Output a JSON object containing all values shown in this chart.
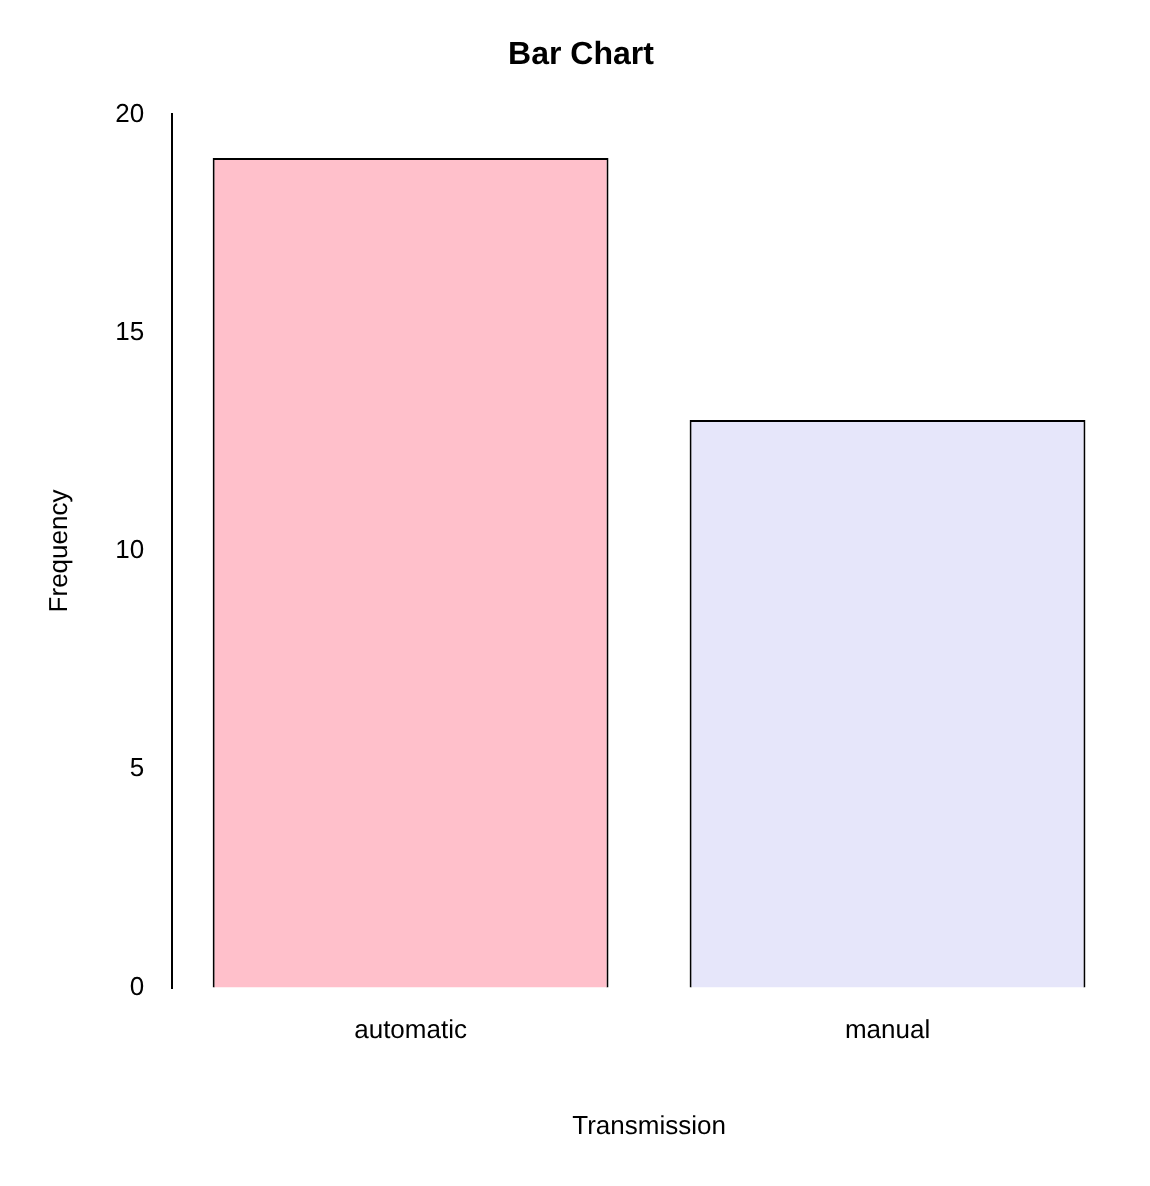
{
  "chart_data": {
    "type": "bar",
    "title": "Bar Chart",
    "xlabel": "Transmission",
    "ylabel": "Frequency",
    "categories": [
      "automatic",
      "manual"
    ],
    "values": [
      19,
      13
    ],
    "colors": [
      "#ffc0cb",
      "#e6e6fa"
    ],
    "ylim": [
      0,
      20
    ],
    "yticks": [
      0,
      5,
      10,
      15,
      20
    ],
    "grid": false,
    "legend": false
  }
}
